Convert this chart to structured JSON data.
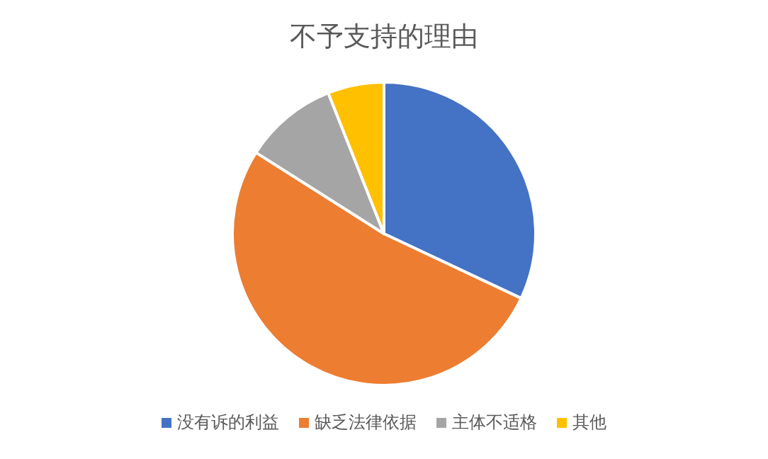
{
  "chart_data": {
    "type": "pie",
    "title": "不予支持的理由",
    "categories": [
      "没有诉的利益",
      "缺乏法律依据",
      "主体不适格",
      "其他"
    ],
    "values": [
      32,
      52,
      10,
      6
    ],
    "colors": [
      "#4472c4",
      "#ed7d31",
      "#a5a5a5",
      "#ffc000"
    ],
    "legend": "bottom"
  }
}
